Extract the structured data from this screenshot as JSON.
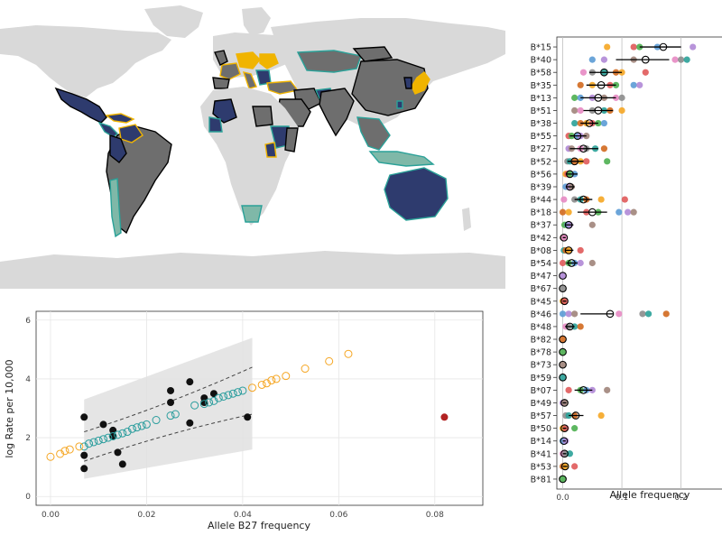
{
  "colors": {
    "land": "#d9d9d9",
    "navy": "#2e3b6e",
    "gray_country": "#6e6e6e",
    "teal_border": "#2aa198",
    "gold_border": "#f0b400",
    "orange": "#f5a623",
    "teal": "#2a9d9d",
    "black": "#111111",
    "red": "#b22222",
    "band": "#e0e0e0"
  },
  "chart_data": [
    {
      "type": "map",
      "title": "",
      "legend": "none"
    },
    {
      "type": "scatter",
      "xlabel": "Allele B27 frequency",
      "ylabel": "log Rate per 10,000",
      "xlim": [
        -0.003,
        0.09
      ],
      "ylim": [
        -0.3,
        6.3
      ],
      "x_ticks": [
        "0.00",
        "0.02",
        "0.04",
        "0.06",
        "0.08"
      ],
      "x_tick_values": [
        0,
        0.02,
        0.04,
        0.06,
        0.08
      ],
      "y_ticks": [
        "0",
        "2",
        "4",
        "6"
      ],
      "y_tick_values": [
        0,
        2,
        4,
        6
      ],
      "grid": true,
      "series": [
        {
          "style": "observed",
          "points": [
            [
              0.007,
              2.7
            ],
            [
              0.007,
              1.4
            ],
            [
              0.007,
              0.95
            ],
            [
              0.011,
              2.45
            ],
            [
              0.013,
              2.05
            ],
            [
              0.013,
              2.25
            ],
            [
              0.014,
              1.5
            ],
            [
              0.015,
              1.1
            ],
            [
              0.025,
              3.2
            ],
            [
              0.025,
              3.6
            ],
            [
              0.029,
              3.9
            ],
            [
              0.029,
              2.5
            ],
            [
              0.032,
              3.2
            ],
            [
              0.032,
              3.35
            ],
            [
              0.034,
              3.5
            ],
            [
              0.041,
              2.7
            ]
          ]
        },
        {
          "style": "predicted-in-sample",
          "points": [
            [
              0.007,
              1.7
            ],
            [
              0.008,
              1.8
            ],
            [
              0.009,
              1.85
            ],
            [
              0.01,
              1.9
            ],
            [
              0.011,
              1.95
            ],
            [
              0.012,
              2.0
            ],
            [
              0.013,
              2.05
            ],
            [
              0.014,
              2.1
            ],
            [
              0.015,
              2.15
            ],
            [
              0.016,
              2.2
            ],
            [
              0.017,
              2.3
            ],
            [
              0.018,
              2.35
            ],
            [
              0.019,
              2.4
            ],
            [
              0.02,
              2.45
            ],
            [
              0.022,
              2.6
            ],
            [
              0.025,
              2.75
            ],
            [
              0.026,
              2.8
            ],
            [
              0.03,
              3.1
            ],
            [
              0.032,
              3.15
            ],
            [
              0.033,
              3.2
            ],
            [
              0.034,
              3.25
            ],
            [
              0.035,
              3.35
            ],
            [
              0.036,
              3.4
            ],
            [
              0.037,
              3.45
            ],
            [
              0.038,
              3.5
            ],
            [
              0.039,
              3.55
            ],
            [
              0.04,
              3.6
            ]
          ]
        },
        {
          "style": "predicted-extrapolated",
          "points": [
            [
              0.0,
              1.35
            ],
            [
              0.002,
              1.45
            ],
            [
              0.003,
              1.55
            ],
            [
              0.004,
              1.6
            ],
            [
              0.006,
              1.7
            ],
            [
              0.042,
              3.7
            ],
            [
              0.044,
              3.8
            ],
            [
              0.045,
              3.85
            ],
            [
              0.046,
              3.95
            ],
            [
              0.047,
              4.0
            ],
            [
              0.049,
              4.1
            ],
            [
              0.053,
              4.35
            ],
            [
              0.058,
              4.6
            ],
            [
              0.062,
              4.85
            ]
          ]
        },
        {
          "style": "outlier",
          "points": [
            [
              0.082,
              2.7
            ]
          ]
        }
      ],
      "confidence_band": {
        "x": [
          0.007,
          0.042
        ],
        "lower": [
          0.6,
          1.6
        ],
        "upper": [
          3.3,
          5.4
        ]
      },
      "ci_lines": {
        "x": [
          0.007,
          0.042
        ],
        "lower": [
          1.2,
          2.8
        ],
        "upper": [
          2.2,
          4.4
        ]
      }
    },
    {
      "type": "dot",
      "xlabel": "Allele frequency",
      "x_ticks": [
        "0.0",
        "0.1",
        "0.2"
      ],
      "x_tick_values": [
        0,
        0.1,
        0.2
      ],
      "xlim": [
        -0.01,
        0.28
      ],
      "grid": true,
      "point_colors": [
        "#f5a623",
        "#e05a5a",
        "#4caf50",
        "#5b9bd5",
        "#b088d6",
        "#a0847a",
        "#e78ac3",
        "#8c8c8c",
        "#2aa198",
        "#d2691e"
      ],
      "categories": [
        "B*15",
        "B*40",
        "B*58",
        "B*35",
        "B*13",
        "B*51",
        "B*38",
        "B*55",
        "B*27",
        "B*52",
        "B*56",
        "B*39",
        "B*44",
        "B*18",
        "B*37",
        "B*42",
        "B*08",
        "B*54",
        "B*47",
        "B*67",
        "B*45",
        "B*46",
        "B*48",
        "B*82",
        "B*78",
        "B*73",
        "B*59",
        "B*07",
        "B*49",
        "B*57",
        "B*50",
        "B*14",
        "B*41",
        "B*53",
        "B*81"
      ],
      "means": [
        0.17,
        0.14,
        0.07,
        0.065,
        0.06,
        0.06,
        0.045,
        0.025,
        0.035,
        0.02,
        0.012,
        0.012,
        0.035,
        0.05,
        0.01,
        0.002,
        0.01,
        0.015,
        0.0,
        0.0,
        0.003,
        0.08,
        0.012,
        0.0,
        0.0,
        0.0,
        0.0,
        0.035,
        0.003,
        0.022,
        0.003,
        0.002,
        0.003,
        0.004,
        0.0
      ],
      "ci_low": [
        0.13,
        0.09,
        0.045,
        0.04,
        0.03,
        0.035,
        0.03,
        0.012,
        0.012,
        0.008,
        0.005,
        0.005,
        0.02,
        0.025,
        0.004,
        0.0,
        0.004,
        0.006,
        0.0,
        0.0,
        0.0,
        0.03,
        0.004,
        0.0,
        0.0,
        0.0,
        0.0,
        0.02,
        0.0,
        0.01,
        0.0,
        0.0,
        0.0,
        0.0,
        0.0
      ],
      "ci_high": [
        0.2,
        0.18,
        0.1,
        0.09,
        0.09,
        0.085,
        0.06,
        0.04,
        0.06,
        0.035,
        0.025,
        0.02,
        0.05,
        0.075,
        0.018,
        0.005,
        0.018,
        0.025,
        0.0,
        0.0,
        0.006,
        0.085,
        0.02,
        0.0,
        0.0,
        0.0,
        0.0,
        0.05,
        0.006,
        0.035,
        0.006,
        0.005,
        0.006,
        0.008,
        0.0
      ],
      "points": [
        [
          0.075,
          0.12,
          0.13,
          0.16,
          0.22,
          0.28
        ],
        [
          0.05,
          0.07,
          0.12,
          0.19,
          0.2,
          0.21
        ],
        [
          0.035,
          0.05,
          0.07,
          0.09,
          0.1,
          0.14
        ],
        [
          0.03,
          0.05,
          0.08,
          0.09,
          0.12,
          0.13
        ],
        [
          0.02,
          0.03,
          0.05,
          0.07,
          0.09,
          0.1
        ],
        [
          0.02,
          0.03,
          0.05,
          0.07,
          0.08,
          0.1
        ],
        [
          0.02,
          0.03,
          0.04,
          0.05,
          0.06,
          0.07
        ],
        [
          0.01,
          0.015,
          0.025,
          0.03,
          0.04
        ],
        [
          0.01,
          0.015,
          0.03,
          0.04,
          0.055,
          0.07
        ],
        [
          0.008,
          0.012,
          0.02,
          0.03,
          0.04,
          0.075
        ],
        [
          0.005,
          0.008,
          0.012,
          0.02
        ],
        [
          0.005,
          0.01,
          0.015
        ],
        [
          0.002,
          0.02,
          0.03,
          0.04,
          0.065,
          0.105
        ],
        [
          0.0,
          0.01,
          0.04,
          0.06,
          0.095,
          0.11,
          0.12
        ],
        [
          0.003,
          0.008,
          0.012,
          0.05
        ],
        [
          0.0,
          0.003
        ],
        [
          0.002,
          0.005,
          0.01,
          0.03
        ],
        [
          0.0,
          0.01,
          0.02,
          0.03,
          0.05
        ],
        [
          0.0
        ],
        [
          0.0
        ],
        [
          0.0,
          0.003
        ],
        [
          0.0,
          0.01,
          0.02,
          0.095,
          0.135,
          0.145,
          0.175
        ],
        [
          0.005,
          0.01,
          0.02,
          0.03
        ],
        [
          0.0
        ],
        [
          0.0
        ],
        [
          0.0
        ],
        [
          0.0
        ],
        [
          0.01,
          0.03,
          0.04,
          0.05,
          0.075
        ],
        [
          0.0,
          0.003
        ],
        [
          0.005,
          0.01,
          0.02,
          0.065
        ],
        [
          0.0,
          0.005,
          0.02
        ],
        [
          0.0,
          0.005
        ],
        [
          0.0,
          0.005,
          0.012
        ],
        [
          0.0,
          0.005,
          0.02
        ],
        [
          0.0
        ]
      ]
    }
  ]
}
